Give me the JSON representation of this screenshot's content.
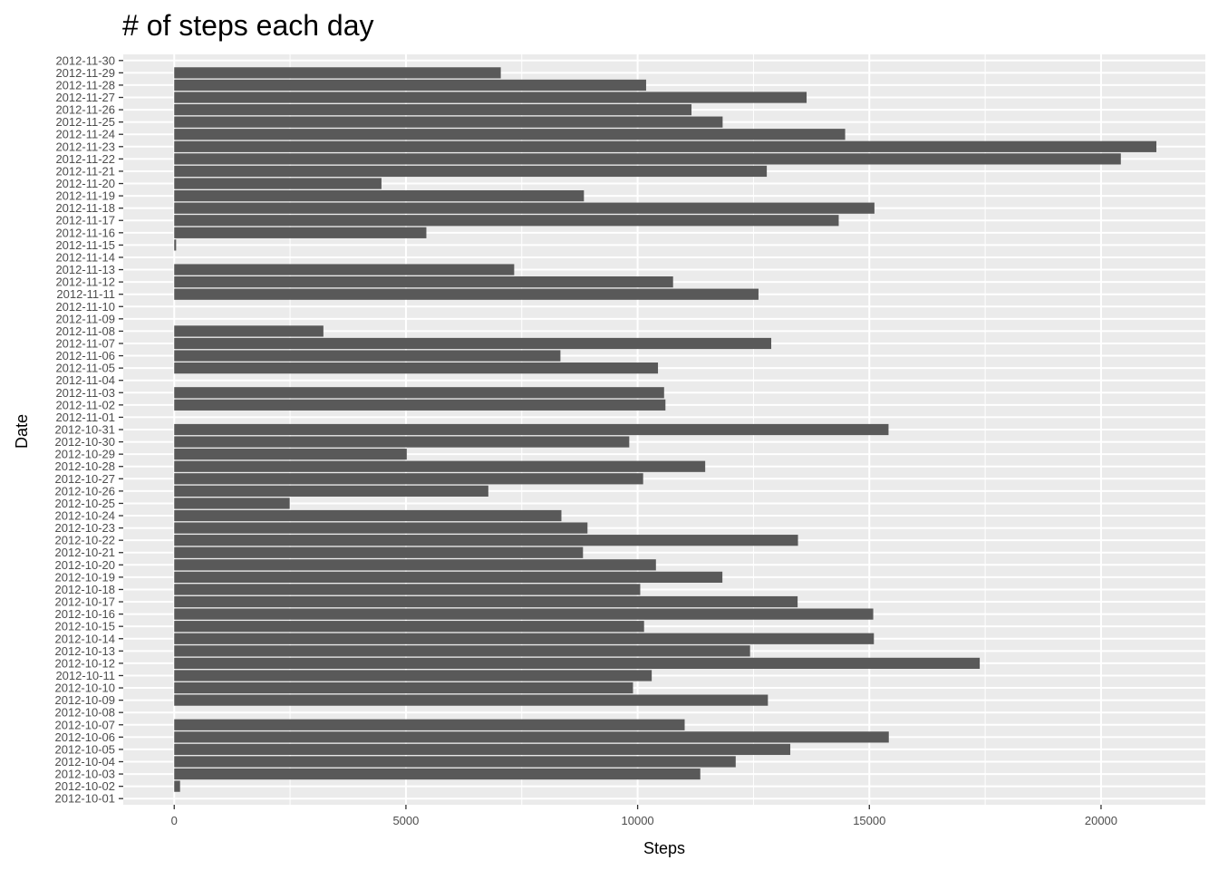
{
  "chart_data": {
    "type": "bar",
    "orientation": "horizontal",
    "title": "# of steps each day",
    "xlabel": "Steps",
    "ylabel": "Date",
    "xlim": [
      -1100,
      22250
    ],
    "x_ticks": [
      0,
      5000,
      10000,
      15000,
      20000
    ],
    "x_tick_labels": [
      "0",
      "5000",
      "10000",
      "15000",
      "20000"
    ],
    "grid": true,
    "bar_color": "#595959",
    "panel_color": "#EBEBEB",
    "grid_color": "#FFFFFF",
    "categories": [
      "2012-10-01",
      "2012-10-02",
      "2012-10-03",
      "2012-10-04",
      "2012-10-05",
      "2012-10-06",
      "2012-10-07",
      "2012-10-08",
      "2012-10-09",
      "2012-10-10",
      "2012-10-11",
      "2012-10-12",
      "2012-10-13",
      "2012-10-14",
      "2012-10-15",
      "2012-10-16",
      "2012-10-17",
      "2012-10-18",
      "2012-10-19",
      "2012-10-20",
      "2012-10-21",
      "2012-10-22",
      "2012-10-23",
      "2012-10-24",
      "2012-10-25",
      "2012-10-26",
      "2012-10-27",
      "2012-10-28",
      "2012-10-29",
      "2012-10-30",
      "2012-10-31",
      "2012-11-01",
      "2012-11-02",
      "2012-11-03",
      "2012-11-04",
      "2012-11-05",
      "2012-11-06",
      "2012-11-07",
      "2012-11-08",
      "2012-11-09",
      "2012-11-10",
      "2012-11-11",
      "2012-11-12",
      "2012-11-13",
      "2012-11-14",
      "2012-11-15",
      "2012-11-16",
      "2012-11-17",
      "2012-11-18",
      "2012-11-19",
      "2012-11-20",
      "2012-11-21",
      "2012-11-22",
      "2012-11-23",
      "2012-11-24",
      "2012-11-25",
      "2012-11-26",
      "2012-11-27",
      "2012-11-28",
      "2012-11-29",
      "2012-11-30"
    ],
    "values": [
      0,
      126,
      11352,
      12116,
      13294,
      15420,
      11015,
      0,
      12811,
      9900,
      10304,
      17382,
      12426,
      15098,
      10139,
      15084,
      13452,
      10056,
      11829,
      10395,
      8821,
      13460,
      8918,
      8355,
      2492,
      6778,
      10119,
      11458,
      5018,
      9819,
      15414,
      0,
      10600,
      10571,
      0,
      10439,
      8334,
      12883,
      3219,
      0,
      0,
      12608,
      10765,
      7336,
      0,
      41,
      5441,
      14339,
      15110,
      8841,
      4472,
      12787,
      20427,
      21194,
      14478,
      11834,
      11162,
      13646,
      10183,
      7047,
      0
    ]
  }
}
